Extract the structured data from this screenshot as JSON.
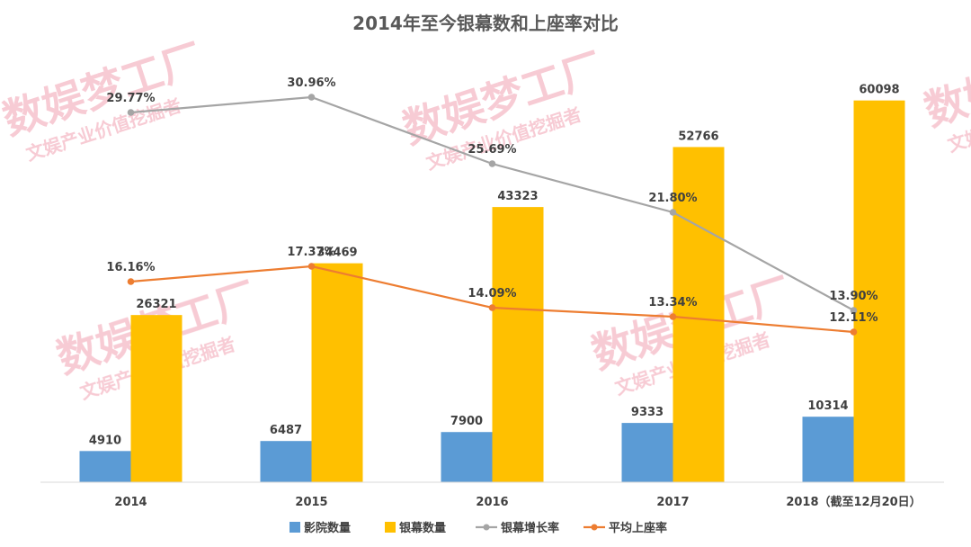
{
  "colors": {
    "cinemas": "#5b9bd5",
    "screens": "#ffc000",
    "screen_growth": "#a5a5a5",
    "occupancy": "#ed7d31",
    "watermark": "#f7c6d0"
  },
  "watermark": {
    "main": "数娱梦工厂",
    "sub": "文娱产业价值挖掘者"
  },
  "chart_data": {
    "type": "bar",
    "title": "2014年至今银幕数和上座率对比",
    "categories": [
      "2014",
      "2015",
      "2016",
      "2017",
      "2018（截至12月20日）"
    ],
    "series": [
      {
        "name": "影院数量",
        "type": "bar",
        "values": [
          4910,
          6487,
          7900,
          9333,
          10314
        ]
      },
      {
        "name": "银幕数量",
        "type": "bar",
        "values": [
          26321,
          34469,
          43323,
          52766,
          60098
        ]
      }
    ],
    "line_series": [
      {
        "name": "银幕增长率",
        "values": [
          29.77,
          30.96,
          25.69,
          21.8,
          13.9
        ],
        "labels": [
          "29.77%",
          "30.96%",
          "25.69%",
          "21.80%",
          "13.90%"
        ]
      },
      {
        "name": "平均上座率",
        "values": [
          16.16,
          17.37,
          14.09,
          13.34,
          12.11
        ],
        "labels": [
          "16.16%",
          "17.37%",
          "14.09%",
          "13.34%",
          "12.11%"
        ]
      }
    ],
    "grid": false,
    "legend_position": "bottom"
  }
}
